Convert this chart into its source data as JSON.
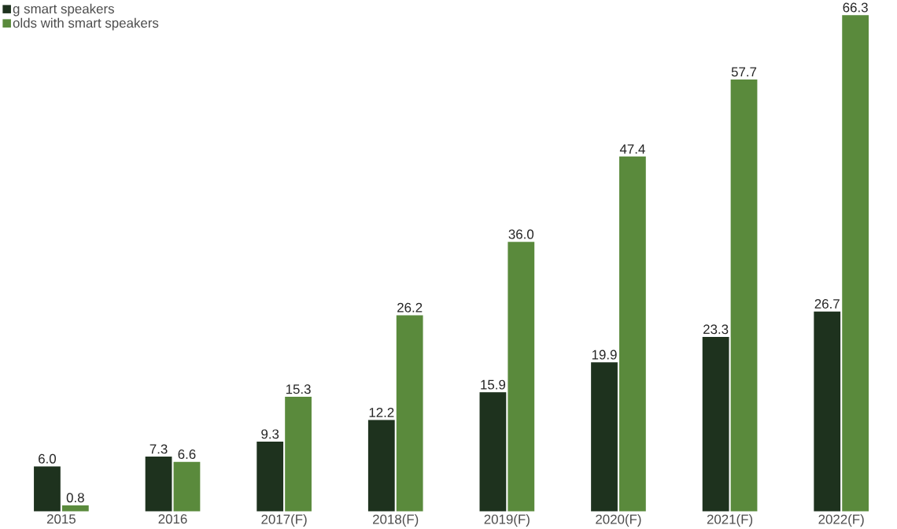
{
  "chart_data": {
    "type": "bar",
    "categories": [
      "2015",
      "2016",
      "2017(F)",
      "2018(F)",
      "2019(F)",
      "2020(F)",
      "2021(F)",
      "2022(F)"
    ],
    "series": [
      {
        "name": "g smart speakers",
        "color": "#1e321e",
        "values": [
          6.0,
          7.3,
          9.3,
          12.2,
          15.9,
          19.9,
          23.3,
          26.7
        ],
        "value_labels": [
          "6.0",
          "7.3",
          "9.3",
          "12.2",
          "15.9",
          "19.9",
          "23.3",
          "26.7"
        ]
      },
      {
        "name": "olds with smart speakers",
        "color": "#5a8a3c",
        "values": [
          0.8,
          6.6,
          15.3,
          26.2,
          36.0,
          47.4,
          57.7,
          66.3
        ],
        "value_labels": [
          "0.8",
          "6.6",
          "15.3",
          "26.2",
          "36.0",
          "47.4",
          "57.7",
          "66.3"
        ]
      }
    ],
    "legend": "top left"
  }
}
